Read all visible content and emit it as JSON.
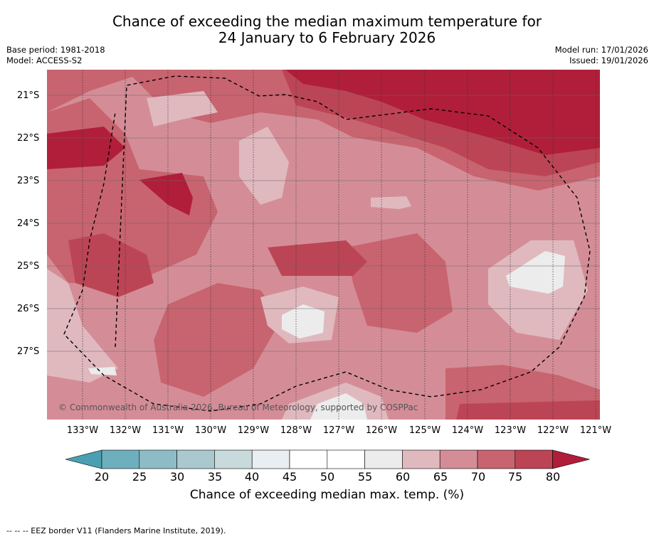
{
  "title_line1": "Chance of exceeding the median maximum temperature for",
  "title_line2": "24 January to 6 February 2026",
  "meta": {
    "base_period": "Base period: 1981-2018",
    "model": "Model: ACCESS-S2",
    "model_run": "Model run: 17/01/2026",
    "issued": "Issued: 19/01/2026"
  },
  "lat_labels": [
    "21°S",
    "22°S",
    "23°S",
    "24°S",
    "25°S",
    "26°S",
    "27°S"
  ],
  "lon_labels": [
    "133°W",
    "132°W",
    "131°W",
    "130°W",
    "129°W",
    "128°W",
    "127°W",
    "126°W",
    "125°W",
    "124°W",
    "123°W",
    "122°W",
    "121°W"
  ],
  "copyright": "© Commonwealth of Australia 2026, Bureau of Meteorology, supported by COSPPac",
  "colorbar": {
    "ticks": [
      "20",
      "25",
      "30",
      "35",
      "40",
      "45",
      "50",
      "55",
      "60",
      "65",
      "70",
      "75",
      "80"
    ],
    "label": "Chance of exceeding median max. temp. (%)",
    "colors": [
      "#4aa0b0",
      "#6eafbd",
      "#8ebcc6",
      "#a9c9ce",
      "#c9dadc",
      "#e8eef1",
      "#ffffff",
      "#ffffff",
      "#ececec",
      "#e0b9bf",
      "#d48d97",
      "#c8646f",
      "#bc4555",
      "#b01e3a"
    ]
  },
  "footer": "--  --  -- EEZ border V11 (Flanders Marine Institute, 2019)."
}
